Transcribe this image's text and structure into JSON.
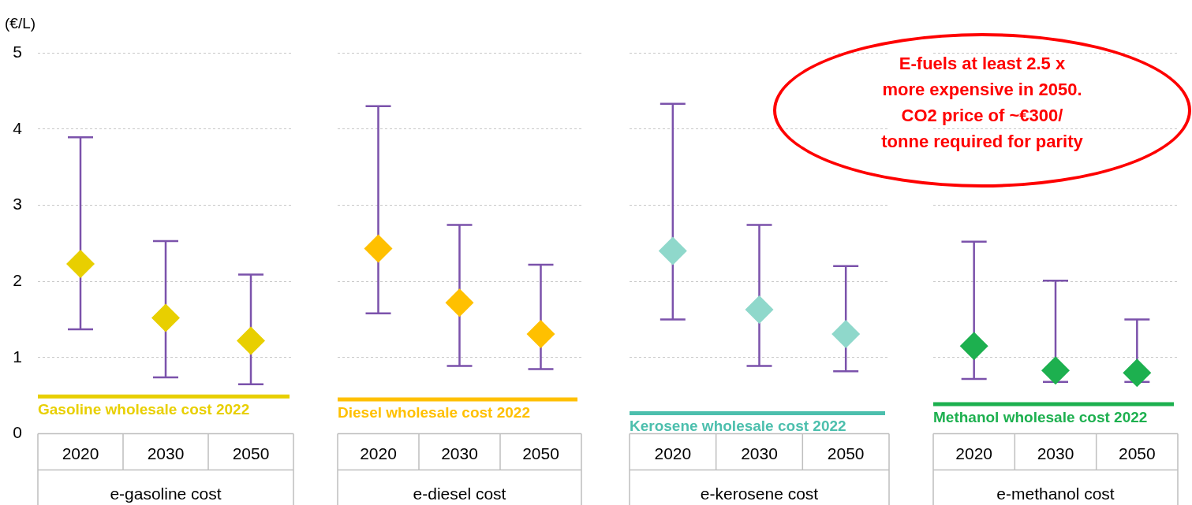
{
  "chart_data": [
    {
      "type": "scatter",
      "ylabel": "(€/L)",
      "xlabel": "e-gasoline cost",
      "categories": [
        "2020",
        "2030",
        "2050"
      ],
      "ylim": [
        0,
        5
      ],
      "yticks": [
        0,
        1,
        2,
        3,
        4,
        5
      ],
      "grid": "y",
      "marker": "diamond",
      "legend": false,
      "series": [
        {
          "color": "#e8cf00",
          "values": [
            2.23,
            1.52,
            1.22
          ],
          "errors": [
            [
              1.37,
              3.89
            ],
            [
              0.74,
              2.53
            ],
            [
              0.65,
              2.09
            ]
          ]
        }
      ],
      "ref_lines": [
        {
          "axis": "y",
          "value": 0.49,
          "label": "Gasoline wholesale cost 2022",
          "color": "#e8cf00"
        }
      ]
    },
    {
      "type": "scatter",
      "xlabel": "e-diesel cost",
      "categories": [
        "2020",
        "2030",
        "2050"
      ],
      "ylim": [
        0,
        5
      ],
      "yticks": [
        0,
        1,
        2,
        3,
        4,
        5
      ],
      "tick_labels": "x",
      "grid": "y",
      "marker": "diamond",
      "legend": false,
      "series": [
        {
          "color": "#ffc000",
          "values": [
            2.43,
            1.72,
            1.31
          ],
          "errors": [
            [
              1.58,
              4.3
            ],
            [
              0.89,
              2.74
            ],
            [
              0.85,
              2.22
            ]
          ]
        }
      ],
      "ref_lines": [
        {
          "axis": "y",
          "value": 0.45,
          "label": "Diesel wholesale cost 2022",
          "color": "#ffc000"
        }
      ]
    },
    {
      "type": "scatter",
      "xlabel": "e-kerosene cost",
      "categories": [
        "2020",
        "2030",
        "2050"
      ],
      "ylim": [
        0,
        5
      ],
      "yticks": [
        0,
        1,
        2,
        3,
        4,
        5
      ],
      "tick_labels": "x",
      "grid": "y",
      "marker": "diamond",
      "legend": false,
      "series": [
        {
          "color": "#8fd8cb",
          "values": [
            2.4,
            1.63,
            1.31
          ],
          "errors": [
            [
              1.5,
              4.33
            ],
            [
              0.89,
              2.74
            ],
            [
              0.82,
              2.2
            ]
          ]
        }
      ],
      "ref_lines": [
        {
          "axis": "y",
          "value": 0.27,
          "label": "Kerosene wholesale cost 2022",
          "color": "#4cbfad"
        }
      ]
    },
    {
      "type": "scatter",
      "xlabel": "e-methanol cost",
      "categories": [
        "2020",
        "2030",
        "2050"
      ],
      "ylim": [
        0,
        5
      ],
      "yticks": [
        0,
        1,
        2,
        3,
        4,
        5
      ],
      "tick_labels": "x",
      "grid": "y",
      "marker": "diamond",
      "legend": false,
      "series": [
        {
          "color": "#1db04f",
          "values": [
            1.15,
            0.83,
            0.8
          ],
          "errors": [
            [
              0.72,
              2.52
            ],
            [
              0.68,
              2.01
            ],
            [
              0.68,
              1.5
            ]
          ]
        }
      ],
      "ref_lines": [
        {
          "axis": "y",
          "value": 0.39,
          "label": "Methanol wholesale cost 2022",
          "color": "#1db04f"
        }
      ],
      "annotations": [
        "E-fuels at least 2.5 x\nmore expensive in 2050.\nCO2 price of ~€300/\ntonne required for parity"
      ]
    }
  ]
}
